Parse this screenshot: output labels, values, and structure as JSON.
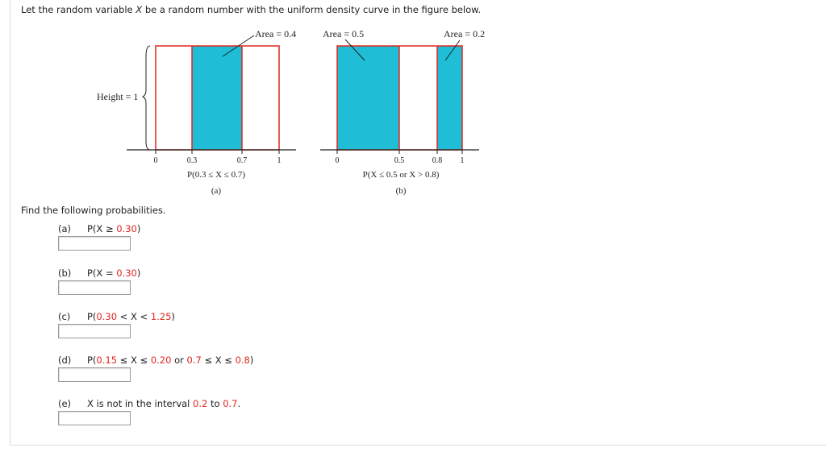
{
  "intro": {
    "pre": "Let the random variable ",
    "var": "X",
    "post": " be a random number with the uniform density curve in the figure below."
  },
  "figure": {
    "height_label": "Height = 1",
    "a": {
      "area_label": "Area = 0.4",
      "ticks": [
        "0",
        "0.3",
        "0.7",
        "1"
      ],
      "caption": "P(0.3 ≤ X ≤ 0.7)",
      "sub": "(a)"
    },
    "b": {
      "area_label_left": "Area = 0.5",
      "area_label_right": "Area = 0.2",
      "ticks": [
        "0",
        "0.5",
        "0.8",
        "1"
      ],
      "caption": "P(X ≤ 0.5 or X > 0.8)",
      "sub": "(b)"
    },
    "colors": {
      "shade": "#1fbdd6",
      "edge": "#e0271f",
      "axis": "#222222"
    }
  },
  "prompt": "Find the following probabilities.",
  "questions": [
    {
      "label": "(a)",
      "expr": [
        [
          "P(X ≥ ",
          false
        ],
        [
          "0.30",
          true
        ],
        [
          ")",
          false
        ]
      ],
      "value": ""
    },
    {
      "label": "(b)",
      "expr": [
        [
          "P(X = ",
          false
        ],
        [
          "0.30",
          true
        ],
        [
          ")",
          false
        ]
      ],
      "value": ""
    },
    {
      "label": "(c)",
      "expr": [
        [
          "P(",
          false
        ],
        [
          "0.30",
          true
        ],
        [
          " < X < ",
          false
        ],
        [
          "1.25",
          true
        ],
        [
          ")",
          false
        ]
      ],
      "value": ""
    },
    {
      "label": "(d)",
      "expr": [
        [
          "P(",
          false
        ],
        [
          "0.15",
          true
        ],
        [
          " ≤ X ≤ ",
          false
        ],
        [
          "0.20",
          true
        ],
        [
          " or ",
          false
        ],
        [
          "0.7",
          true
        ],
        [
          " ≤ X ≤ ",
          false
        ],
        [
          "0.8",
          true
        ],
        [
          ")",
          false
        ]
      ],
      "value": ""
    },
    {
      "label": "(e)",
      "expr": [
        [
          "X is not in the interval ",
          false
        ],
        [
          "0.2",
          true
        ],
        [
          " to ",
          false
        ],
        [
          "0.7",
          true
        ],
        [
          ".",
          false
        ]
      ],
      "value": ""
    }
  ]
}
